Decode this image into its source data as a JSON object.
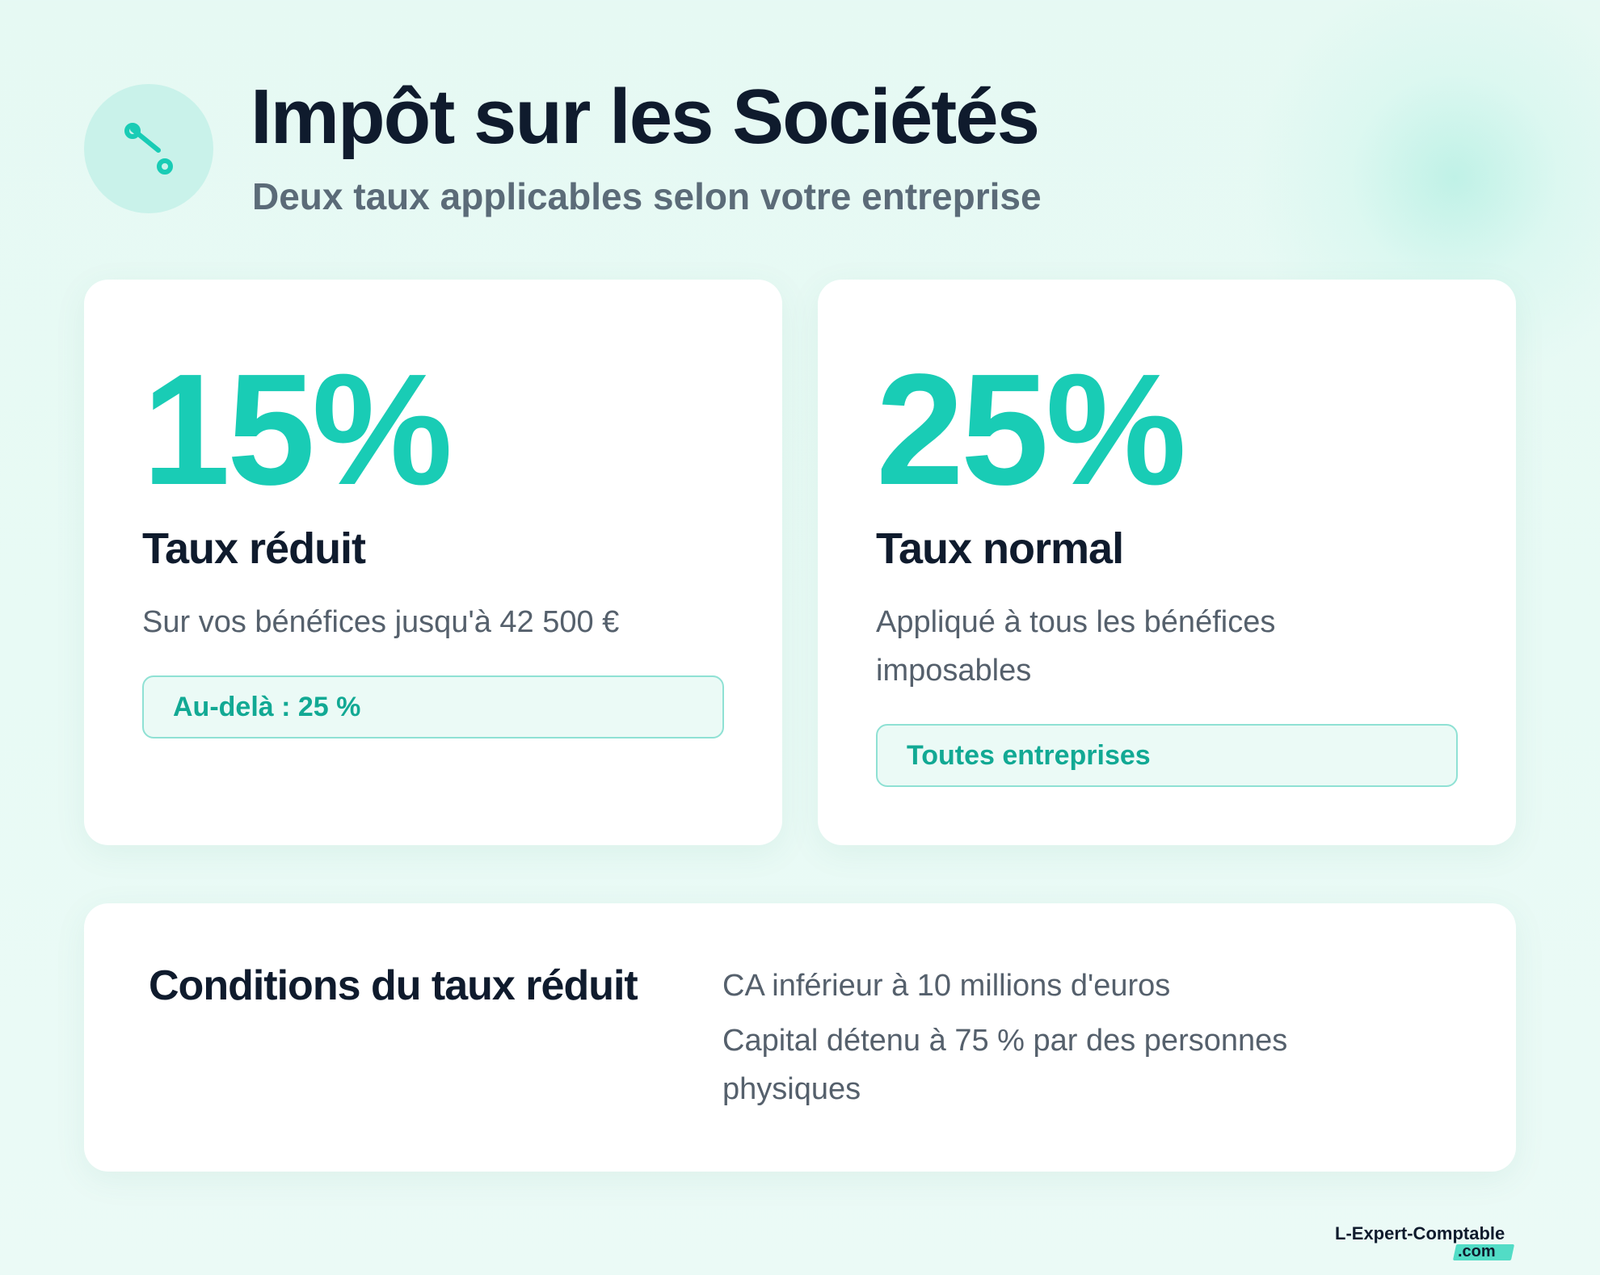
{
  "header": {
    "icon": "percent-icon",
    "title": "Impôt sur les Sociétés",
    "subtitle": "Deux taux applicables selon votre entreprise"
  },
  "cards": [
    {
      "rate": "15%",
      "label": "Taux réduit",
      "description": "Sur vos bénéfices jusqu'à 42 500 €",
      "badge": "Au-delà : 25 %"
    },
    {
      "rate": "25%",
      "label": "Taux normal",
      "description": "Appliqué à tous les bénéfices imposables",
      "badge": "Toutes entreprises"
    }
  ],
  "conditions": {
    "title": "Conditions du taux réduit",
    "items": [
      "CA inférieur à 10 millions d'euros",
      "Capital détenu à 75 % par des personnes physiques"
    ]
  },
  "footer": {
    "logo_name": "L-Expert-Comptable",
    "logo_tld": ".com"
  },
  "colors": {
    "accent": "#19ccb5",
    "accent_dark": "#12a994",
    "title": "#0f1b2d",
    "muted": "#55606c",
    "background": "#e6f9f3"
  }
}
